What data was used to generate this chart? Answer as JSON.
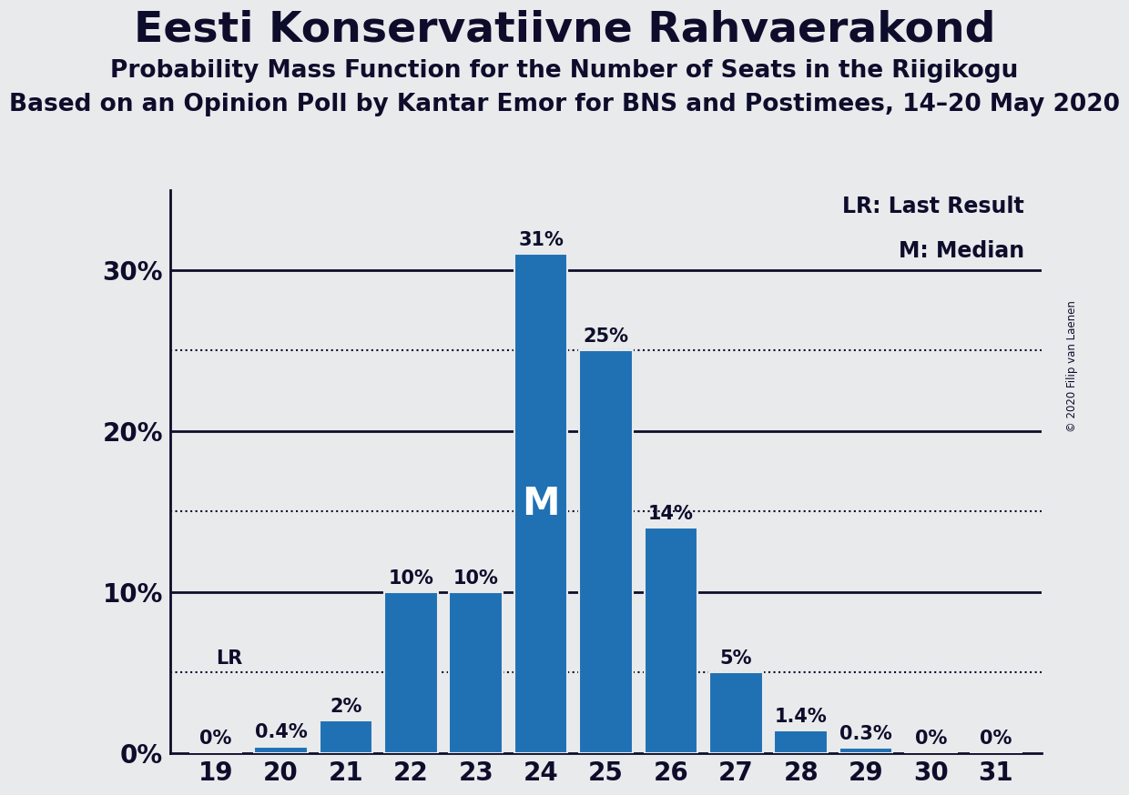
{
  "title": "Eesti Konservatiivne Rahvaerakond",
  "subtitle1": "Probability Mass Function for the Number of Seats in the Riigikogu",
  "subtitle2": "Based on an Opinion Poll by Kantar Emor for BNS and Postimees, 14–20 May 2020",
  "copyright": "© 2020 Filip van Laenen",
  "seats": [
    19,
    20,
    21,
    22,
    23,
    24,
    25,
    26,
    27,
    28,
    29,
    30,
    31
  ],
  "probabilities": [
    0.0,
    0.4,
    2.0,
    10.0,
    10.0,
    31.0,
    25.0,
    14.0,
    5.0,
    1.4,
    0.3,
    0.0,
    0.0
  ],
  "bar_color": "#2070b4",
  "background_color": "#e8eaec",
  "median_seat": 24,
  "median_label": "M",
  "lr_value": 5.0,
  "lr_label": "LR",
  "lr_legend": "LR: Last Result",
  "m_legend": "M: Median",
  "yticks": [
    0,
    10,
    20,
    30
  ],
  "dotted_lines": [
    5.0,
    15.0,
    25.0
  ],
  "ylim": [
    0,
    35
  ],
  "text_color": "#0d0d2b",
  "title_fontsize": 34,
  "subtitle1_fontsize": 19,
  "subtitle2_fontsize": 19,
  "bar_label_fontsize": 15,
  "axis_label_fontsize": 20,
  "legend_fontsize": 17
}
